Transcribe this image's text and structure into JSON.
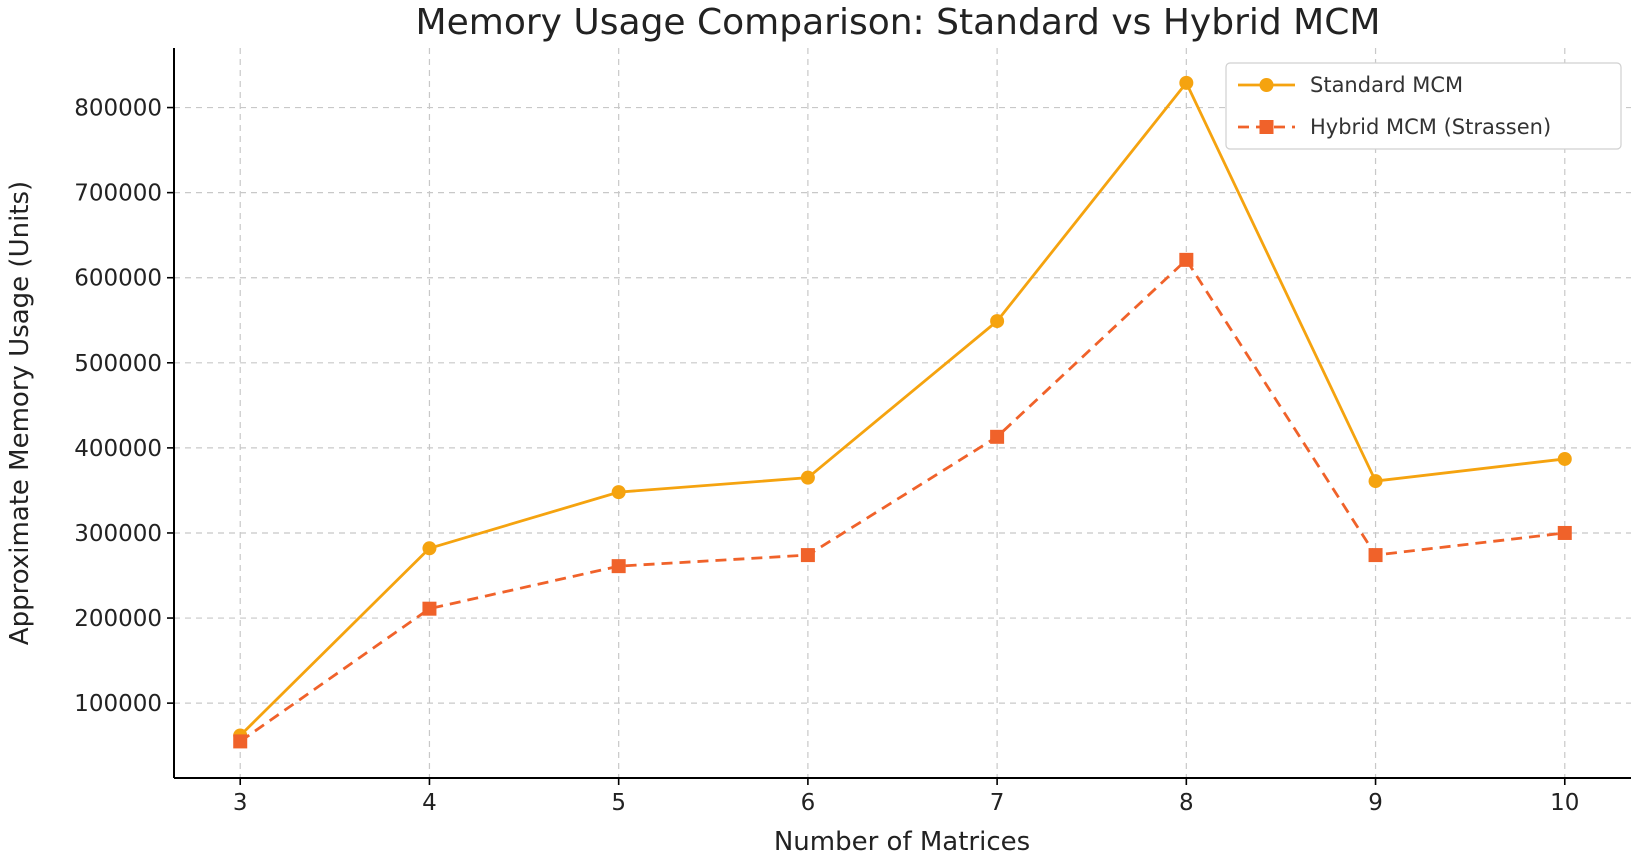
{
  "chart_data": {
    "type": "line",
    "title": "Memory Usage Comparison: Standard vs Hybrid MCM",
    "xlabel": "Number of Matrices",
    "ylabel": "Approximate Memory Usage (Units)",
    "x": [
      3,
      4,
      5,
      6,
      7,
      8,
      9,
      10
    ],
    "xlim": [
      2.65,
      10.35
    ],
    "ylim": [
      12000,
      870000
    ],
    "yticks": [
      100000,
      200000,
      300000,
      400000,
      500000,
      600000,
      700000,
      800000
    ],
    "grid": true,
    "legend": "top-right",
    "series": [
      {
        "name": "Standard MCM",
        "values": [
          62000,
          282000,
          348000,
          365000,
          549000,
          829000,
          361000,
          387000
        ],
        "color": "#f5a30f",
        "line_style": "solid",
        "marker": "circle"
      },
      {
        "name": "Hybrid MCM (Strassen)",
        "values": [
          55000,
          211000,
          261000,
          274000,
          413000,
          621000,
          274000,
          300000
        ],
        "color": "#f0622a",
        "line_style": "dashed",
        "marker": "square"
      }
    ]
  }
}
